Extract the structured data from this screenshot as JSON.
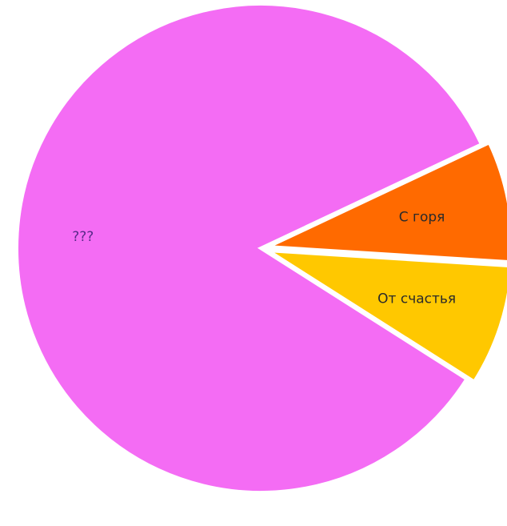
{
  "chart_data": {
    "type": "pie",
    "title": "",
    "slices": [
      {
        "label": "???",
        "value": 84,
        "color": "#f46cf4",
        "label_color": "#5a2a8a"
      },
      {
        "label": "От счастья",
        "value": 8,
        "color": "#ffc800",
        "label_color": "#2a2a2a"
      },
      {
        "label": "С горя",
        "value": 8,
        "color": "#ff6a00",
        "label_color": "#2a2a2a"
      }
    ],
    "legend": "none"
  }
}
